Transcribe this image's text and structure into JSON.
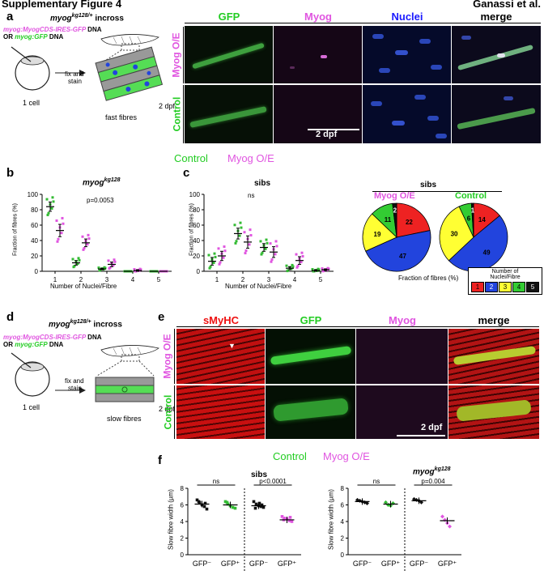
{
  "header": {
    "title": "Supplementary Figure 4",
    "author": "Ganassi et al."
  },
  "panel_a": {
    "label": "a",
    "cross_prefix": "myog",
    "cross_sup": "kg128/+",
    "cross_suffix": " incross",
    "dna1": "myog:MyogCDS-IRES-GFP",
    "dna_word": "DNA",
    "or_text": "OR ",
    "dna2": "myog:GFP",
    "fix": "fix and",
    "stain": "stain",
    "cell": "1 cell",
    "dpf": "2 dpf",
    "fibres": "fast fibres",
    "cols": [
      "GFP",
      "Myog",
      "Nuclei",
      "merge"
    ],
    "rows": [
      "Myog O/E",
      "Control"
    ],
    "scale": "2 dpf"
  },
  "legend_top": {
    "control": "Control",
    "myog": "Myog O/E"
  },
  "panel_b": {
    "label": "b",
    "title": "myog",
    "title_sup": "kg128",
    "pval": "p=0.0053",
    "ylabel": "Fraction of fibres (%)",
    "xlabel": "Number of Nuclei/Fibre"
  },
  "panel_c": {
    "label": "c",
    "title": "sibs",
    "ns": "ns",
    "ylabel": "Fraction of fibres (%)",
    "xlabel": "Number of Nuclei/Fibre"
  },
  "pies": {
    "title": "sibs",
    "myog_label": "Myog O/E",
    "control_label": "Control",
    "xlabel": "Fraction of fibres (%)",
    "legend_title": [
      "Number of",
      "Nuclei/Fibre"
    ],
    "legend_items": [
      "1",
      "2",
      "3",
      "4",
      "5"
    ],
    "colors": [
      "#ee2222",
      "#2244dd",
      "#ffff33",
      "#33cc33",
      "#111111"
    ]
  },
  "panel_d": {
    "label": "d",
    "cross_prefix": "myog",
    "cross_sup": "kg128/+",
    "cross_suffix": " incross",
    "dna1": "myog:MyogCDS-IRES-GFP",
    "dna_word": "DNA",
    "or_text": "OR ",
    "dna2": "myog:GFP",
    "fix": "fix and",
    "stain": "stain",
    "cell": "1 cell",
    "dpf": "2 dpf",
    "fibres": "slow fibres"
  },
  "panel_e": {
    "label": "e",
    "cols": [
      "sMyHC",
      "GFP",
      "Myog",
      "merge"
    ],
    "rows": [
      "Myog O/E",
      "Control"
    ],
    "scale": "2 dpf"
  },
  "legend_f": {
    "control": "Control",
    "myog": "Myog O/E"
  },
  "panel_f": {
    "label": "f",
    "left_title": "sibs",
    "right_title": "myog",
    "right_title_sup": "kg128",
    "ylabel": "Slow fibre width (µm)",
    "left_stats": [
      "ns",
      "p<0.0001"
    ],
    "right_stats": [
      "ns",
      "p=0.004"
    ],
    "xcats": [
      "GFP⁻",
      "GFP⁺",
      "GFP⁻",
      "GFP⁺"
    ]
  },
  "chart_data": [
    {
      "type": "scatter",
      "title": "myog kg128",
      "xlabel": "Number of Nuclei/Fibre",
      "ylabel": "Fraction of fibres (%)",
      "ylim": [
        0,
        100
      ],
      "yticks": [
        0,
        20,
        40,
        60,
        80,
        100
      ],
      "categories": [
        "1",
        "2",
        "3",
        "4",
        "5"
      ],
      "series": [
        {
          "name": "Control",
          "color": "#33bb33",
          "means": [
            84,
            11,
            3,
            0,
            0
          ],
          "sem": [
            6,
            3,
            1,
            0,
            0
          ]
        },
        {
          "name": "Myog O/E",
          "color": "#e055e0",
          "means": [
            53,
            37,
            9,
            1,
            0
          ],
          "sem": [
            8,
            5,
            3,
            1,
            0
          ]
        }
      ]
    },
    {
      "type": "scatter",
      "title": "sibs",
      "xlabel": "Number of Nuclei/Fibre",
      "ylabel": "Fraction of fibres (%)",
      "ylim": [
        0,
        100
      ],
      "yticks": [
        0,
        20,
        40,
        60,
        80,
        100
      ],
      "categories": [
        "1",
        "2",
        "3",
        "4",
        "5"
      ],
      "series": [
        {
          "name": "Control",
          "color": "#33bb33",
          "means": [
            13,
            49,
            31,
            4,
            1
          ],
          "sem": [
            5,
            7,
            5,
            2,
            1
          ]
        },
        {
          "name": "Myog O/E",
          "color": "#e055e0",
          "means": [
            20,
            38,
            25,
            14,
            2
          ],
          "sem": [
            6,
            8,
            7,
            5,
            1
          ]
        }
      ]
    },
    {
      "type": "pie",
      "title": "Myog O/E",
      "labels": [
        "1",
        "2",
        "3",
        "4",
        "5"
      ],
      "values": [
        22,
        47,
        19,
        11,
        2
      ]
    },
    {
      "type": "pie",
      "title": "Control",
      "labels": [
        "1",
        "2",
        "3",
        "4",
        "5"
      ],
      "values": [
        14,
        49,
        30,
        6,
        1
      ]
    },
    {
      "type": "scatter",
      "title": "sibs",
      "ylabel": "Slow fibre width (µm)",
      "ylim": [
        0,
        8
      ],
      "yticks": [
        0,
        2,
        4,
        6,
        8
      ],
      "categories": [
        "GFP⁻",
        "GFP⁺",
        "GFP⁻",
        "GFP⁺"
      ],
      "groups": [
        {
          "color": "#111111",
          "marker": "square",
          "mean": 6.1,
          "points": [
            6.6,
            6.3,
            6.0,
            5.8,
            5.5,
            6.4,
            6.2
          ]
        },
        {
          "color": "#33bb33",
          "marker": "square",
          "mean": 6.0,
          "points": [
            6.4,
            6.1,
            5.9,
            5.7,
            5.6,
            6.3
          ]
        },
        {
          "color": "#111111",
          "marker": "square",
          "mean": 5.9,
          "points": [
            6.4,
            6.1,
            5.9,
            5.8,
            5.7,
            5.6,
            6.0,
            6.2
          ]
        },
        {
          "color": "#e055e0",
          "marker": "square",
          "mean": 4.2,
          "points": [
            4.6,
            4.4,
            4.3,
            4.1,
            4.0,
            4.2,
            4.5
          ]
        }
      ]
    },
    {
      "type": "scatter",
      "title": "myog kg128",
      "ylabel": "Slow fibre width (µm)",
      "ylim": [
        0,
        8
      ],
      "yticks": [
        0,
        2,
        4,
        6,
        8
      ],
      "categories": [
        "GFP⁻",
        "GFP⁺",
        "GFP⁻",
        "GFP⁺"
      ],
      "groups": [
        {
          "color": "#111111",
          "marker": "diamond",
          "mean": 6.4,
          "points": [
            6.6,
            6.5,
            6.4,
            6.3,
            6.2
          ]
        },
        {
          "color": "#33bb33",
          "marker": "diamond",
          "mean": 6.1,
          "points": [
            6.3,
            6.0,
            5.9,
            6.2
          ]
        },
        {
          "color": "#111111",
          "marker": "diamond",
          "mean": 6.5,
          "points": [
            6.7,
            6.6,
            6.5,
            6.3
          ]
        },
        {
          "color": "#e055e0",
          "marker": "diamond",
          "mean": 4.1,
          "points": [
            4.6,
            4.2,
            3.8,
            3.4
          ]
        }
      ]
    }
  ]
}
